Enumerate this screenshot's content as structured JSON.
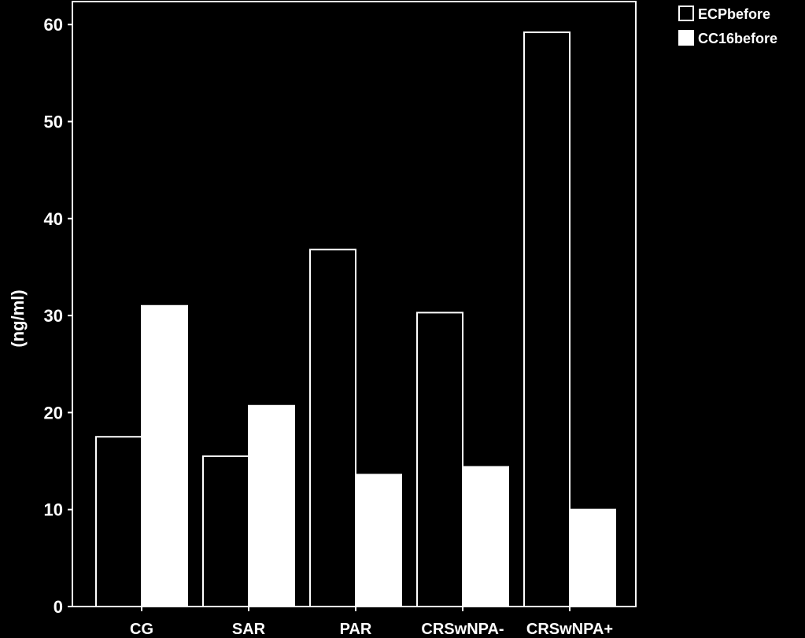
{
  "chart_data": {
    "type": "bar",
    "categories": [
      "CG",
      "SAR",
      "PAR",
      "CRSwNPA-",
      "CRSwNPA+"
    ],
    "series": [
      {
        "name": "ECPbefore",
        "values": [
          17.5,
          15.5,
          36.8,
          30.3,
          59.2
        ]
      },
      {
        "name": "CC16before",
        "values": [
          31.0,
          20.7,
          13.6,
          14.4,
          10.0
        ]
      }
    ],
    "ylabel": "(ng/ml)",
    "xlabel": "",
    "ylim": [
      0,
      65
    ],
    "yticks": [
      0,
      10,
      20,
      30,
      40,
      50,
      60
    ],
    "legend_position": "top-right",
    "grid": false,
    "colors": {
      "background": "#000000",
      "ECPbefore": "#000000",
      "CC16before": "#ffffff",
      "stroke": "#ffffff"
    }
  }
}
